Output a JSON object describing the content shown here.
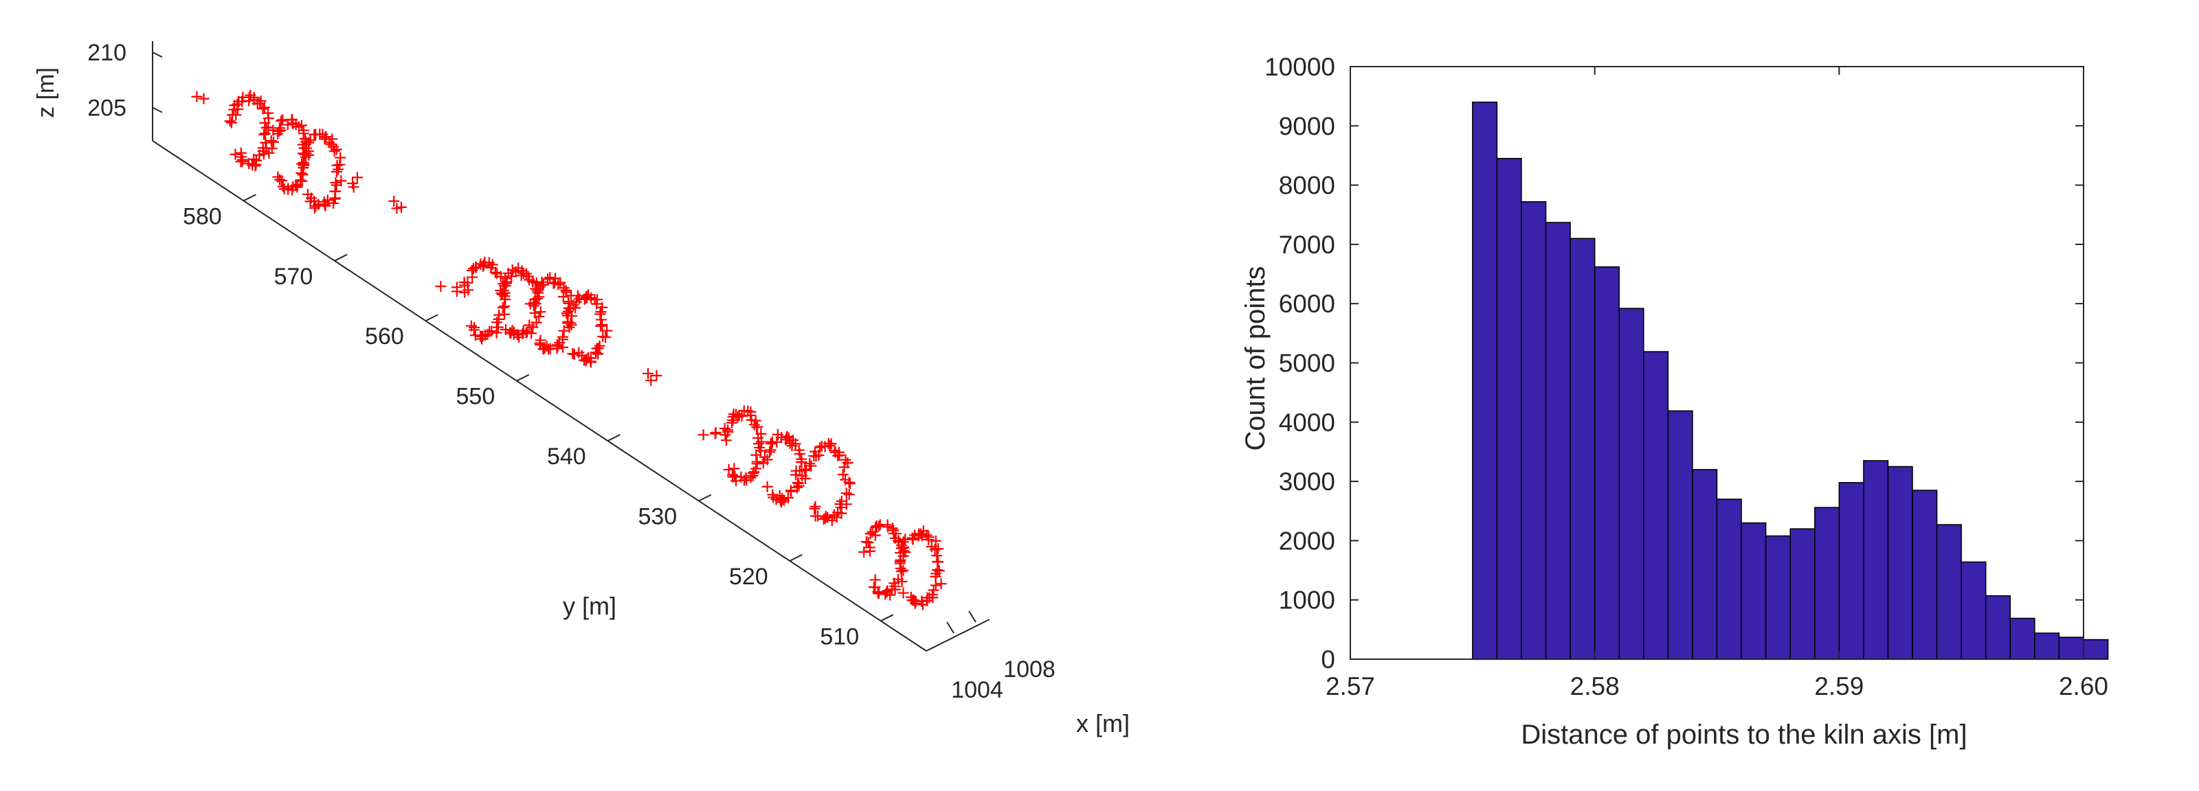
{
  "colors": {
    "points": "#ff0000",
    "bars": "#3a22aa",
    "bar_edge": "#000000",
    "axes": "#262626"
  },
  "chart_data": [
    {
      "type": "scatter",
      "projection": "3d",
      "marker": "+",
      "xlabel": "x [m]",
      "ylabel": "y [m]",
      "zlabel": "z [m]",
      "x_ticks": [
        "1004",
        "1008"
      ],
      "y_ticks": [
        "510",
        "520",
        "530",
        "540",
        "550",
        "560",
        "570",
        "580"
      ],
      "z_ticks": [
        "205",
        "210"
      ],
      "xlim": [
        1002,
        1010
      ],
      "ylim": [
        505,
        590
      ],
      "zlim": [
        202,
        211
      ],
      "grid": false,
      "clusters": [
        {
          "y": 586,
          "x": 1003.0,
          "z": 207.8,
          "kind": "point"
        },
        {
          "y": 582,
          "x": 1005.0,
          "z": 206.2,
          "kind": "arc"
        },
        {
          "y": 578,
          "x": 1005.5,
          "z": 206.0,
          "kind": "arc"
        },
        {
          "y": 575,
          "x": 1006.0,
          "z": 206.0,
          "kind": "arc"
        },
        {
          "y": 572,
          "x": 1007.0,
          "z": 206.2,
          "kind": "dots"
        },
        {
          "y": 568,
          "x": 1007.5,
          "z": 206.0,
          "kind": "dots"
        },
        {
          "y": 561,
          "x": 1006.0,
          "z": 203.0,
          "kind": "dots"
        },
        {
          "y": 557,
          "x": 1006.0,
          "z": 204.0,
          "kind": "arc"
        },
        {
          "y": 554,
          "x": 1007.0,
          "z": 205.0,
          "kind": "arc"
        },
        {
          "y": 551,
          "x": 1007.5,
          "z": 205.5,
          "kind": "arc"
        },
        {
          "y": 548,
          "x": 1008.5,
          "z": 205.5,
          "kind": "arc"
        },
        {
          "y": 540,
          "x": 1008.0,
          "z": 205.5,
          "kind": "dots"
        },
        {
          "y": 533,
          "x": 1007.0,
          "z": 205.0,
          "kind": "dots"
        },
        {
          "y": 530,
          "x": 1007.5,
          "z": 205.0,
          "kind": "arc"
        },
        {
          "y": 526,
          "x": 1008.0,
          "z": 205.0,
          "kind": "arc"
        },
        {
          "y": 522,
          "x": 1009.0,
          "z": 205.5,
          "kind": "arc"
        },
        {
          "y": 513,
          "x": 1006.0,
          "z": 204.5,
          "kind": "arc"
        },
        {
          "y": 510,
          "x": 1007.0,
          "z": 205.0,
          "kind": "arc"
        }
      ]
    },
    {
      "type": "bar",
      "subtype": "histogram",
      "xlabel": "Distance of points to the kiln axis [m]",
      "ylabel": "Count of points",
      "xlim": [
        2.57,
        2.6
      ],
      "ylim": [
        0,
        10000
      ],
      "x_ticks": [
        "2.57",
        "2.58",
        "2.59",
        "2.60"
      ],
      "y_ticks": [
        "0",
        "1000",
        "2000",
        "3000",
        "4000",
        "5000",
        "6000",
        "7000",
        "8000",
        "9000",
        "10000"
      ],
      "bin_start": 2.575,
      "bin_width": 0.001,
      "values": [
        9400,
        8450,
        7720,
        7370,
        7100,
        6620,
        5920,
        5190,
        4190,
        3200,
        2700,
        2300,
        2080,
        2200,
        2560,
        2980,
        3350,
        3250,
        2850,
        2270,
        1640,
        1070,
        690,
        440,
        370,
        330
      ],
      "grid": false,
      "box": true
    }
  ]
}
